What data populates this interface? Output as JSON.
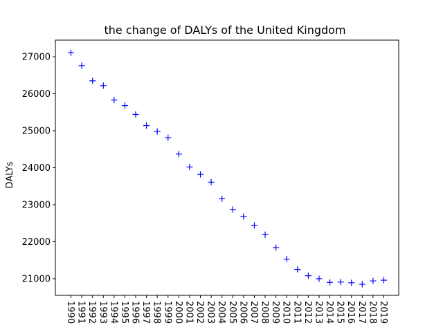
{
  "chart_data": {
    "type": "scatter",
    "title": "the change of DALYs of the United Kingdom",
    "xlabel": "",
    "ylabel": "DALYs",
    "marker": "+",
    "marker_color": "#0000ff",
    "x_tick_rotation": "vertical",
    "grid": false,
    "ylim": [
      20550,
      27450
    ],
    "y_ticks": [
      21000,
      22000,
      23000,
      24000,
      25000,
      26000,
      27000
    ],
    "categories": [
      "1990",
      "1991",
      "1992",
      "1993",
      "1994",
      "1995",
      "1996",
      "1997",
      "1998",
      "1999",
      "2000",
      "2001",
      "2002",
      "2003",
      "2004",
      "2005",
      "2006",
      "2007",
      "2008",
      "2009",
      "2010",
      "2011",
      "2012",
      "2013",
      "2014",
      "2015",
      "2016",
      "2017",
      "2018",
      "2019"
    ],
    "values": [
      27110,
      26760,
      26350,
      26220,
      25830,
      25680,
      25440,
      25140,
      24980,
      24810,
      24370,
      24020,
      23820,
      23610,
      23160,
      22870,
      22680,
      22440,
      22190,
      21840,
      21530,
      21250,
      21080,
      21000,
      20900,
      20910,
      20890,
      20850,
      20940,
      20960
    ]
  }
}
